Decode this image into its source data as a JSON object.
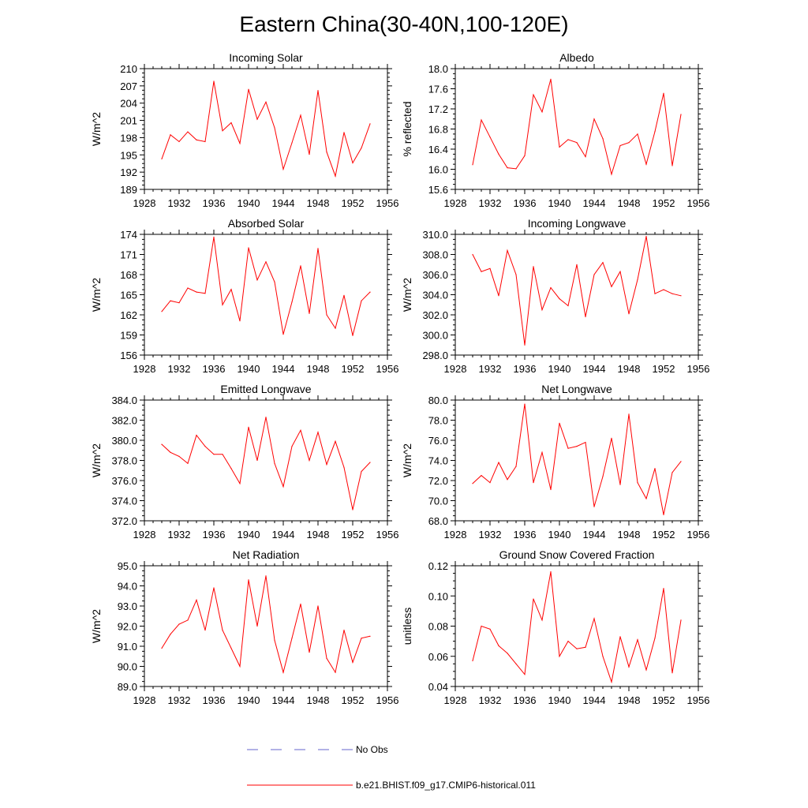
{
  "title": "Eastern China(30-40N,100-120E)",
  "legend": {
    "entries": [
      {
        "label": "No Obs",
        "color": "#6666cc",
        "dash": "dashed"
      },
      {
        "label": "b.e21.BHIST.f09_g17.CMIP6-historical.011",
        "color": "#ff0000",
        "dash": "solid"
      }
    ]
  },
  "chart_data": [
    {
      "type": "line",
      "title": "Incoming Solar",
      "ylabel": "W/m^2",
      "xlim": [
        1928,
        1956
      ],
      "xticks": [
        1928,
        1932,
        1936,
        1940,
        1944,
        1948,
        1952,
        1956
      ],
      "ylim": [
        189,
        210
      ],
      "yticks": [
        189,
        192,
        195,
        198,
        201,
        204,
        207,
        210
      ],
      "ytick_labels": [
        "189",
        "192",
        "195",
        "198",
        "201",
        "204",
        "207",
        "210"
      ],
      "series": [
        {
          "color": "#ff0000",
          "x": [
            1930,
            1931,
            1932,
            1933,
            1934,
            1935,
            1936,
            1937,
            1938,
            1939,
            1940,
            1941,
            1942,
            1943,
            1944,
            1945,
            1946,
            1947,
            1948,
            1949,
            1950,
            1951,
            1952,
            1953,
            1954
          ],
          "y": [
            194.3,
            198.5,
            197.3,
            199.0,
            197.6,
            197.3,
            207.8,
            199.2,
            200.6,
            197.0,
            206.4,
            201.2,
            204.2,
            199.7,
            192.5,
            197.1,
            201.9,
            195.1,
            206.2,
            195.5,
            191.3,
            198.9,
            193.6,
            196.2,
            200.4
          ]
        }
      ]
    },
    {
      "type": "line",
      "title": "Albedo",
      "ylabel": "% reflected",
      "xlim": [
        1928,
        1956
      ],
      "xticks": [
        1928,
        1932,
        1936,
        1940,
        1944,
        1948,
        1952,
        1956
      ],
      "ylim": [
        15.6,
        18.0
      ],
      "yticks": [
        15.6,
        16.0,
        16.4,
        16.8,
        17.2,
        17.6,
        18.0
      ],
      "ytick_labels": [
        "15.6",
        "16.0",
        "16.4",
        "16.8",
        "17.2",
        "17.6",
        "18.0"
      ],
      "series": [
        {
          "color": "#ff0000",
          "x": [
            1930,
            1931,
            1932,
            1933,
            1934,
            1935,
            1936,
            1937,
            1938,
            1939,
            1940,
            1941,
            1942,
            1943,
            1944,
            1945,
            1946,
            1947,
            1948,
            1949,
            1950,
            1951,
            1952,
            1953,
            1954
          ],
          "y": [
            16.09,
            16.98,
            16.64,
            16.3,
            16.03,
            16.01,
            16.27,
            17.48,
            17.14,
            17.79,
            16.44,
            16.59,
            16.53,
            16.25,
            17.0,
            16.61,
            15.9,
            16.47,
            16.53,
            16.7,
            16.1,
            16.75,
            17.51,
            16.07,
            17.09
          ]
        }
      ]
    },
    {
      "type": "line",
      "title": "Absorbed Solar",
      "ylabel": "W/m^2",
      "xlim": [
        1928,
        1956
      ],
      "xticks": [
        1928,
        1932,
        1936,
        1940,
        1944,
        1948,
        1952,
        1956
      ],
      "ylim": [
        156,
        174
      ],
      "yticks": [
        156,
        159,
        162,
        165,
        168,
        171,
        174
      ],
      "ytick_labels": [
        "156",
        "159",
        "162",
        "165",
        "168",
        "171",
        "174"
      ],
      "series": [
        {
          "color": "#ff0000",
          "x": [
            1930,
            1931,
            1932,
            1933,
            1934,
            1935,
            1936,
            1937,
            1938,
            1939,
            1940,
            1941,
            1942,
            1943,
            1944,
            1945,
            1946,
            1947,
            1948,
            1949,
            1950,
            1951,
            1952,
            1953,
            1954
          ],
          "y": [
            162.5,
            164.1,
            163.8,
            166.0,
            165.4,
            165.2,
            173.6,
            163.5,
            165.8,
            161.1,
            172.0,
            167.2,
            169.9,
            166.9,
            159.1,
            163.9,
            169.3,
            162.2,
            171.9,
            162.0,
            160.0,
            164.9,
            158.9,
            164.1,
            165.4
          ]
        }
      ]
    },
    {
      "type": "line",
      "title": "Incoming Longwave",
      "ylabel": "W/m^2",
      "xlim": [
        1928,
        1956
      ],
      "xticks": [
        1928,
        1932,
        1936,
        1940,
        1944,
        1948,
        1952,
        1956
      ],
      "ylim": [
        298.0,
        310.0
      ],
      "yticks": [
        298,
        300,
        302,
        304,
        306,
        308,
        310
      ],
      "ytick_labels": [
        "298.0",
        "300.0",
        "302.0",
        "304.0",
        "306.0",
        "308.0",
        "310.0"
      ],
      "series": [
        {
          "color": "#ff0000",
          "x": [
            1930,
            1931,
            1932,
            1933,
            1934,
            1935,
            1936,
            1937,
            1938,
            1939,
            1940,
            1941,
            1942,
            1943,
            1944,
            1945,
            1946,
            1947,
            1948,
            1949,
            1950,
            1951,
            1952,
            1953,
            1954
          ],
          "y": [
            308.0,
            306.3,
            306.6,
            303.9,
            308.4,
            306.0,
            299.0,
            306.8,
            302.5,
            304.7,
            303.6,
            302.9,
            307.0,
            301.8,
            306.0,
            307.2,
            304.8,
            306.3,
            302.1,
            305.5,
            309.8,
            304.1,
            304.5,
            304.1,
            303.9
          ]
        }
      ]
    },
    {
      "type": "line",
      "title": "Emitted Longwave",
      "ylabel": "W/m^2",
      "xlim": [
        1928,
        1956
      ],
      "xticks": [
        1928,
        1932,
        1936,
        1940,
        1944,
        1948,
        1952,
        1956
      ],
      "ylim": [
        372.0,
        384.0
      ],
      "yticks": [
        372,
        374,
        376,
        378,
        380,
        382,
        384
      ],
      "ytick_labels": [
        "372.0",
        "374.0",
        "376.0",
        "378.0",
        "380.0",
        "382.0",
        "384.0"
      ],
      "series": [
        {
          "color": "#ff0000",
          "x": [
            1930,
            1931,
            1932,
            1933,
            1934,
            1935,
            1936,
            1937,
            1938,
            1939,
            1940,
            1941,
            1942,
            1943,
            1944,
            1945,
            1946,
            1947,
            1948,
            1949,
            1950,
            1951,
            1952,
            1953,
            1954
          ],
          "y": [
            379.6,
            378.8,
            378.4,
            377.7,
            380.5,
            379.4,
            378.6,
            378.6,
            377.2,
            375.7,
            381.3,
            378.0,
            382.3,
            377.7,
            375.4,
            379.4,
            381.0,
            378.0,
            380.8,
            377.6,
            379.9,
            377.3,
            373.1,
            376.9,
            377.8
          ]
        }
      ]
    },
    {
      "type": "line",
      "title": "Net Longwave",
      "ylabel": "W/m^2",
      "xlim": [
        1928,
        1956
      ],
      "xticks": [
        1928,
        1932,
        1936,
        1940,
        1944,
        1948,
        1952,
        1956
      ],
      "ylim": [
        68.0,
        80.0
      ],
      "yticks": [
        68,
        70,
        72,
        74,
        76,
        78,
        80
      ],
      "ytick_labels": [
        "68.0",
        "70.0",
        "72.0",
        "74.0",
        "76.0",
        "78.0",
        "80.0"
      ],
      "series": [
        {
          "color": "#ff0000",
          "x": [
            1930,
            1931,
            1932,
            1933,
            1934,
            1935,
            1936,
            1937,
            1938,
            1939,
            1940,
            1941,
            1942,
            1943,
            1944,
            1945,
            1946,
            1947,
            1948,
            1949,
            1950,
            1951,
            1952,
            1953,
            1954
          ],
          "y": [
            71.7,
            72.5,
            71.8,
            73.8,
            72.1,
            73.4,
            79.6,
            71.8,
            74.8,
            71.1,
            77.7,
            75.2,
            75.4,
            75.8,
            69.4,
            72.4,
            76.2,
            71.6,
            78.6,
            71.8,
            70.2,
            73.2,
            68.6,
            72.8,
            73.9
          ]
        }
      ]
    },
    {
      "type": "line",
      "title": "Net Radiation",
      "ylabel": "W/m^2",
      "xlim": [
        1928,
        1956
      ],
      "xticks": [
        1928,
        1932,
        1936,
        1940,
        1944,
        1948,
        1952,
        1956
      ],
      "ylim": [
        89.0,
        95.0
      ],
      "yticks": [
        89,
        90,
        91,
        92,
        93,
        94,
        95
      ],
      "ytick_labels": [
        "89.0",
        "90.0",
        "91.0",
        "92.0",
        "93.0",
        "94.0",
        "95.0"
      ],
      "series": [
        {
          "color": "#ff0000",
          "x": [
            1930,
            1931,
            1932,
            1933,
            1934,
            1935,
            1936,
            1937,
            1938,
            1939,
            1940,
            1941,
            1942,
            1943,
            1944,
            1945,
            1946,
            1947,
            1948,
            1949,
            1950,
            1951,
            1952,
            1953,
            1954
          ],
          "y": [
            90.9,
            91.6,
            92.1,
            92.3,
            93.3,
            91.8,
            93.9,
            91.8,
            90.9,
            90.0,
            94.3,
            92.0,
            94.5,
            91.3,
            89.7,
            91.4,
            93.1,
            90.7,
            93.0,
            90.4,
            89.7,
            91.8,
            90.2,
            91.4,
            91.5
          ]
        }
      ]
    },
    {
      "type": "line",
      "title": "Ground Snow Covered Fraction",
      "ylabel": "unitless",
      "xlim": [
        1928,
        1956
      ],
      "xticks": [
        1928,
        1932,
        1936,
        1940,
        1944,
        1948,
        1952,
        1956
      ],
      "ylim": [
        0.04,
        0.12
      ],
      "yticks": [
        0.04,
        0.06,
        0.08,
        0.1,
        0.12
      ],
      "ytick_labels": [
        "0.04",
        "0.06",
        "0.08",
        "0.10",
        "0.12"
      ],
      "series": [
        {
          "color": "#ff0000",
          "x": [
            1930,
            1931,
            1932,
            1933,
            1934,
            1935,
            1936,
            1937,
            1938,
            1939,
            1940,
            1941,
            1942,
            1943,
            1944,
            1945,
            1946,
            1947,
            1948,
            1949,
            1950,
            1951,
            1952,
            1953,
            1954
          ],
          "y": [
            0.057,
            0.08,
            0.078,
            0.067,
            0.062,
            0.055,
            0.048,
            0.098,
            0.084,
            0.116,
            0.06,
            0.07,
            0.065,
            0.066,
            0.085,
            0.06,
            0.043,
            0.073,
            0.053,
            0.071,
            0.051,
            0.072,
            0.105,
            0.049,
            0.084
          ]
        }
      ]
    }
  ]
}
